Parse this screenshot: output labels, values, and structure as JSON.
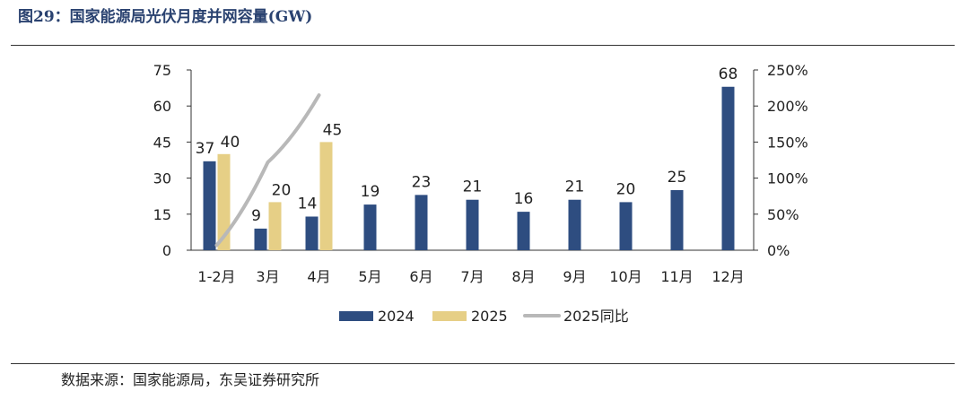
{
  "figure": {
    "title": "图29：国家能源局光伏月度并网容量(GW)",
    "source": "数据来源：国家能源局，东吴证券研究所"
  },
  "colors": {
    "series_2024": "#2e4d80",
    "series_2025": "#e6cf86",
    "series_yoy": "#b8b8b8"
  },
  "chart_data": {
    "type": "bar",
    "categories": [
      "1-2月",
      "3月",
      "4月",
      "5月",
      "6月",
      "7月",
      "8月",
      "9月",
      "10月",
      "11月",
      "12月"
    ],
    "series": [
      {
        "name": "2024",
        "type": "bar",
        "axis": "left",
        "values": [
          37,
          9,
          14,
          19,
          23,
          21,
          16,
          21,
          20,
          25,
          68
        ]
      },
      {
        "name": "2025",
        "type": "bar",
        "axis": "left",
        "values": [
          40,
          20,
          45,
          null,
          null,
          null,
          null,
          null,
          null,
          null,
          null
        ]
      },
      {
        "name": "2025同比",
        "type": "line",
        "axis": "right",
        "values": [
          0.07,
          1.22,
          2.15,
          null,
          null,
          null,
          null,
          null,
          null,
          null,
          null
        ]
      }
    ],
    "yaxis_left": {
      "min": 0,
      "max": 75,
      "ticks": [
        "0",
        "15",
        "30",
        "45",
        "60",
        "75"
      ]
    },
    "yaxis_right": {
      "min": 0,
      "max": 2.5,
      "ticks": [
        "0%",
        "50%",
        "100%",
        "150%",
        "200%",
        "250%"
      ]
    },
    "data_labels": {
      "2024": [
        "37",
        "9",
        "14",
        "19",
        "23",
        "21",
        "16",
        "21",
        "20",
        "25",
        "68"
      ],
      "2025": [
        "40",
        "20",
        "45"
      ]
    },
    "legend": {
      "position": "bottom",
      "entries": [
        "2024",
        "2025",
        "2025同比"
      ]
    },
    "grid": false
  }
}
